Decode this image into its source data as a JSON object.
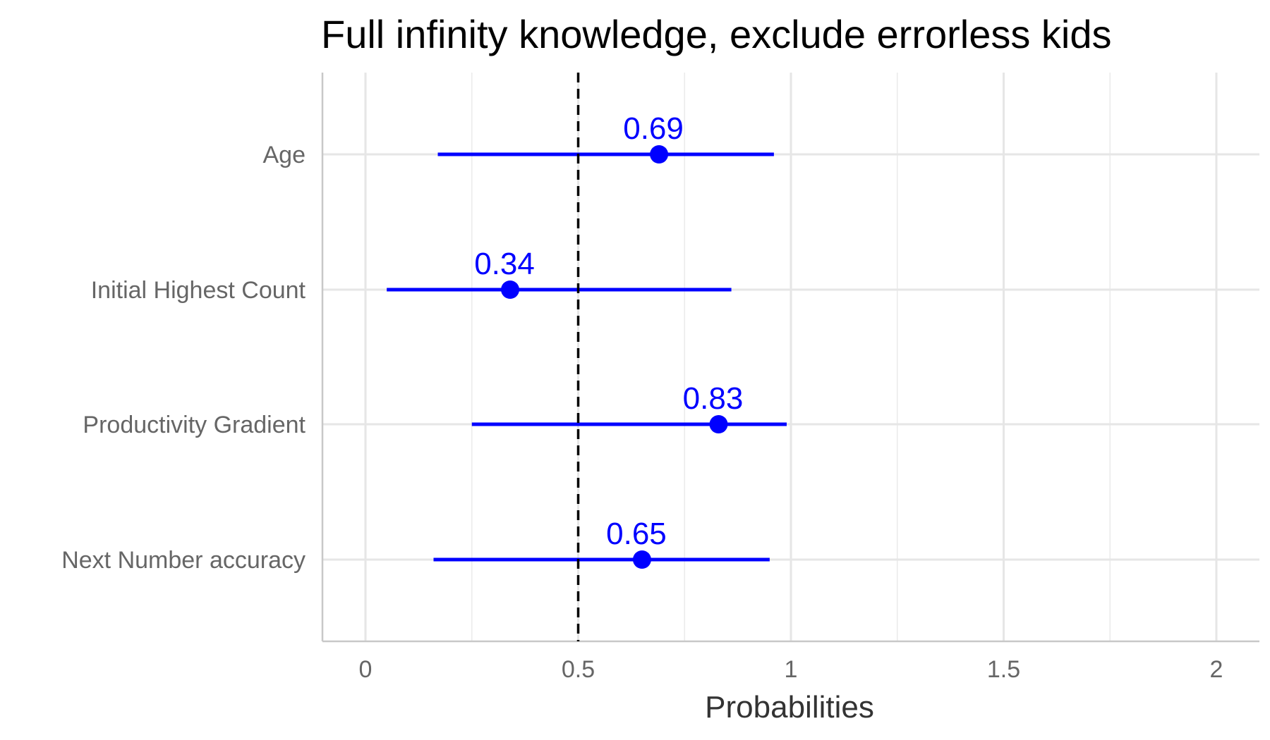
{
  "chart_data": {
    "type": "scatter",
    "title": "Full infinity knowledge, exclude errorless kids",
    "xlabel": "Probabilities",
    "ylabel": "",
    "xlim": [
      0,
      2
    ],
    "x_ticks": [
      "0",
      "0.5",
      "1",
      "1.5",
      "2"
    ],
    "reference_line": {
      "x": 0.5,
      "style": "dashed",
      "color": "#000000"
    },
    "grid": true,
    "color": "#0000FF",
    "categories": [
      "Age",
      "Initial Highest Count",
      "Productivity Gradient",
      "Next Number accuracy"
    ],
    "points": [
      {
        "category": "Age",
        "estimate": 0.69,
        "lower": 0.17,
        "upper": 0.96,
        "label": "0.69"
      },
      {
        "category": "Initial Highest Count",
        "estimate": 0.34,
        "lower": 0.05,
        "upper": 0.86,
        "label": "0.34"
      },
      {
        "category": "Productivity Gradient",
        "estimate": 0.83,
        "lower": 0.25,
        "upper": 0.99,
        "label": "0.83"
      },
      {
        "category": "Next Number accuracy",
        "estimate": 0.65,
        "lower": 0.16,
        "upper": 0.95,
        "label": "0.65"
      }
    ]
  }
}
